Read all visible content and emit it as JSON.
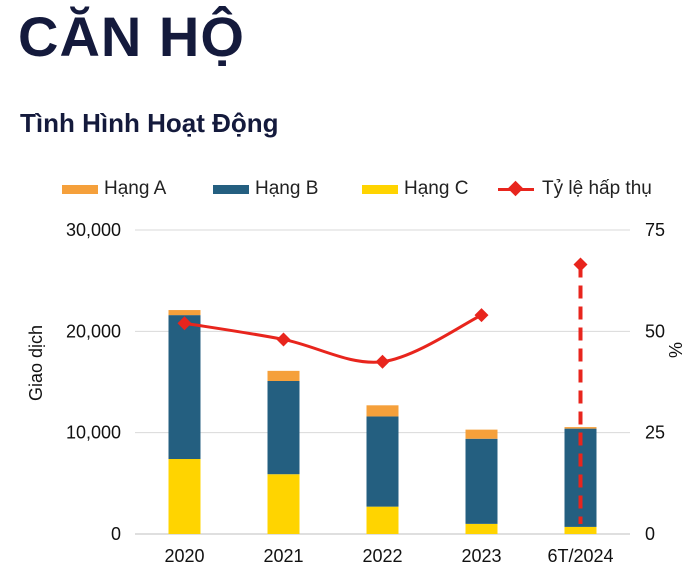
{
  "header": {
    "title": "CĂN HỘ",
    "subtitle": "Tình Hình Hoạt Động"
  },
  "colors": {
    "hang_a": "#f5a03b",
    "hang_b": "#245f80",
    "hang_c": "#ffd400",
    "ty_le": "#e8251d",
    "grid": "#d9d9d9"
  },
  "chart_data": {
    "type": "bar",
    "stacked": true,
    "categories": [
      "2020",
      "2021",
      "2022",
      "2023",
      "6T/2024"
    ],
    "series": [
      {
        "name": "Hạng A",
        "values": [
          500,
          1000,
          1100,
          900,
          150
        ]
      },
      {
        "name": "Hạng B",
        "values": [
          14200,
          9200,
          8900,
          8400,
          9700
        ]
      },
      {
        "name": "Hạng C",
        "values": [
          7400,
          5900,
          2700,
          1000,
          700
        ]
      }
    ],
    "line_series": {
      "name": "Tỷ lệ hấp thụ",
      "axis": "right",
      "values": [
        52,
        48,
        42.5,
        54,
        66.5
      ]
    },
    "ylabel": "Giao dịch",
    "y2label": "%",
    "ylim": [
      0,
      30000
    ],
    "y2lim": [
      0,
      75
    ],
    "yticks": [
      "0",
      "10,000",
      "20,000",
      "30,000"
    ],
    "y2ticks": [
      "0",
      "25",
      "50",
      "75"
    ],
    "legend_position": "top",
    "grid": true
  }
}
